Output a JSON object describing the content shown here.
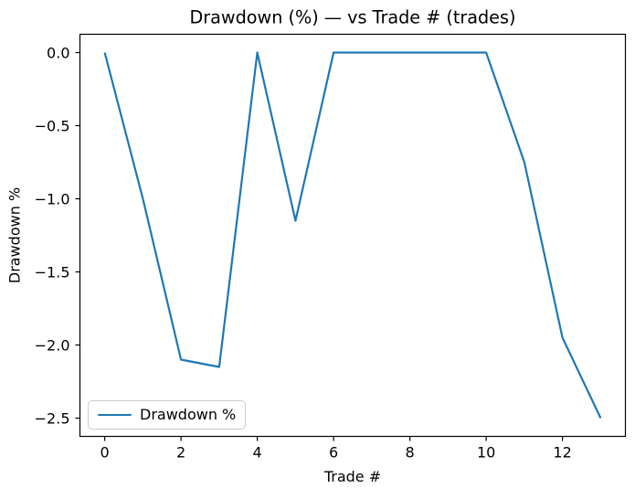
{
  "chart_data": {
    "type": "line",
    "title": "Drawdown (%) — vs Trade # (trades)",
    "xlabel": "Trade #",
    "ylabel": "Drawdown %",
    "x": [
      0,
      1,
      2,
      3,
      4,
      5,
      6,
      7,
      8,
      9,
      10,
      11,
      12,
      13
    ],
    "series": [
      {
        "name": "Drawdown %",
        "color": "#1f77b4",
        "values": [
          0.0,
          -1.0,
          -2.1,
          -2.15,
          0.0,
          -1.15,
          0.0,
          0.0,
          0.0,
          0.0,
          0.0,
          -0.75,
          -1.95,
          -2.5
        ]
      }
    ],
    "xlim": [
      -0.65,
      13.65
    ],
    "ylim": [
      -2.625,
      0.125
    ],
    "xticks": {
      "values": [
        0,
        2,
        4,
        6,
        8,
        10,
        12
      ],
      "labels": [
        "0",
        "2",
        "4",
        "6",
        "8",
        "10",
        "12"
      ]
    },
    "yticks": {
      "values": [
        0.0,
        -0.5,
        -1.0,
        -1.5,
        -2.0,
        -2.5
      ],
      "labels": [
        "0.0",
        "−0.5",
        "−1.0",
        "−1.5",
        "−2.0",
        "−2.5"
      ]
    },
    "legend": {
      "location": "lower left",
      "entries": [
        {
          "label": "Drawdown %",
          "color": "#1f77b4"
        }
      ]
    },
    "grid": false,
    "axis_color": "#000000",
    "background": "#ffffff"
  }
}
